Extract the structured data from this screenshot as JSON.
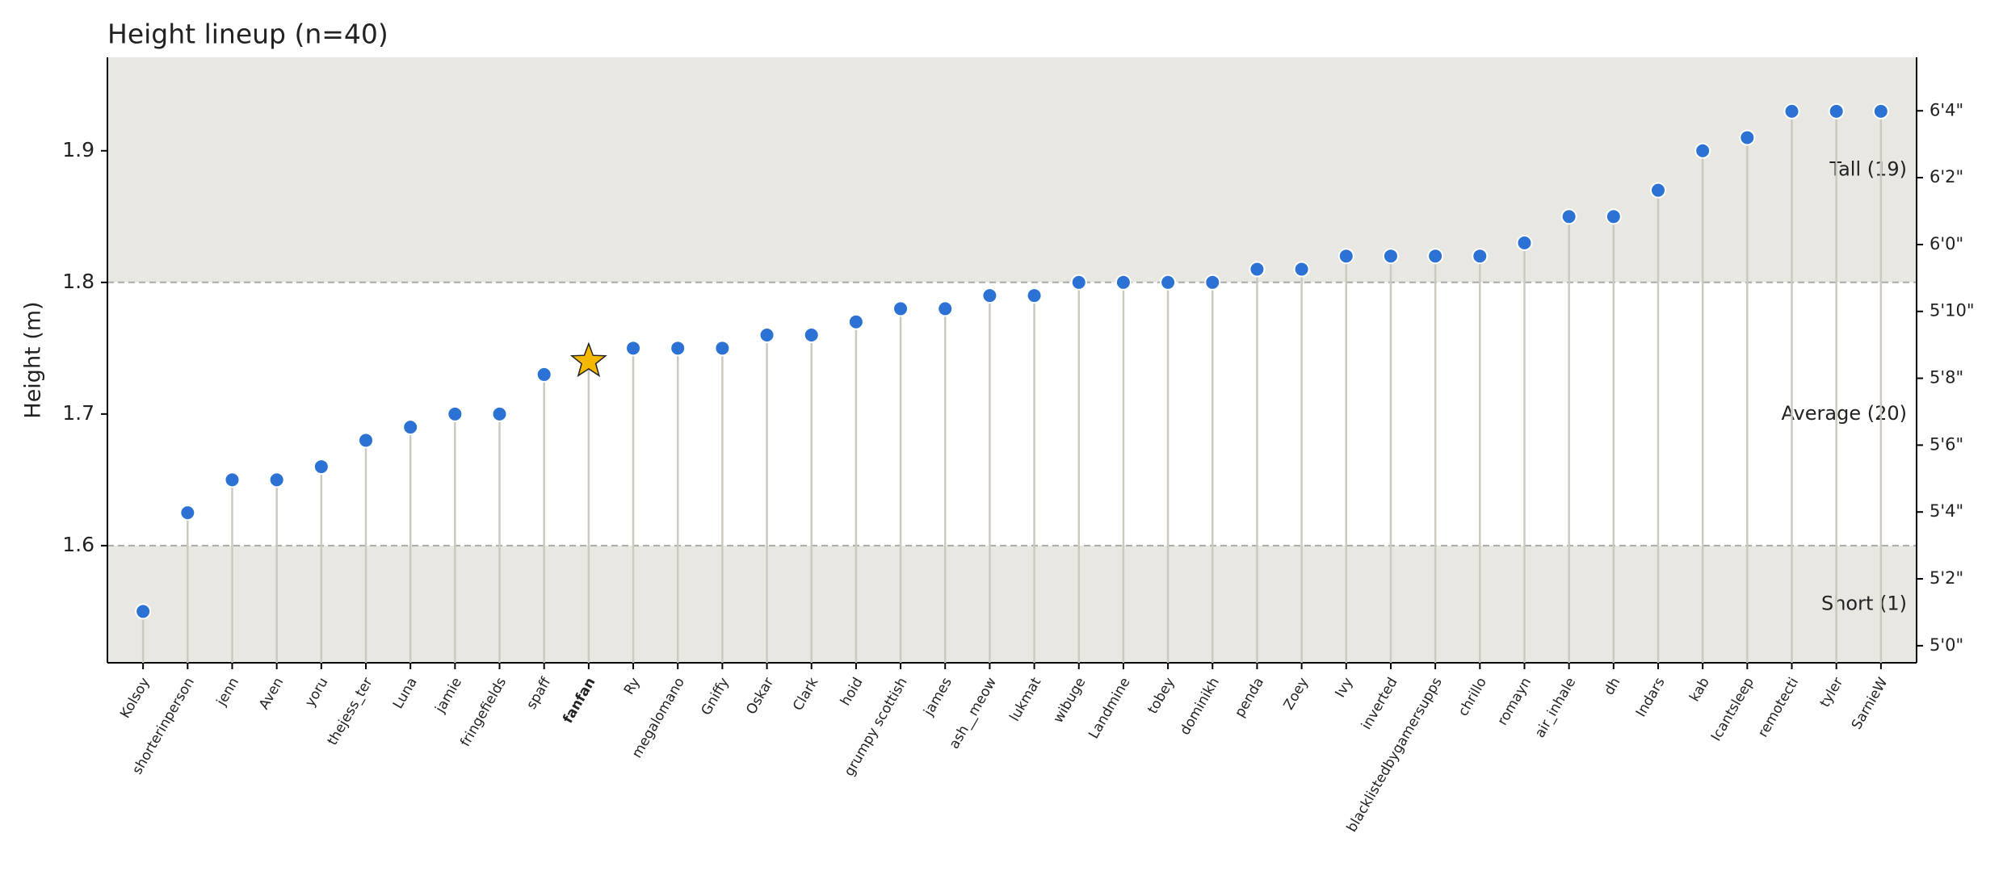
{
  "chart_data": {
    "type": "lollipop",
    "title": "Height lineup (n=40)",
    "y_label": "Height (m)",
    "categories": [
      "Kolsoy",
      "shorterinperson",
      "jenn",
      "Aven",
      "yoru",
      "thejess_ter",
      "Luna",
      "jamie",
      "fringefields",
      "spaff",
      "fanfan",
      "Ry",
      "megalomano",
      "Gniffy",
      "Oskar",
      "Clark",
      "hoid",
      "grumpy scottish",
      "james",
      "ash__meow",
      "lukmat",
      "wibuge",
      "Landmine",
      "tobey",
      "dominikh",
      "penda",
      "Zoey",
      "Ivy",
      "inverted",
      "blacklistedbygamersupps",
      "chrillo",
      "romayn",
      "air_inhale",
      "dh",
      "Indars",
      "kab",
      "Icantsleep",
      "remotecti",
      "tyler",
      "SarnieW"
    ],
    "values": [
      1.55,
      1.625,
      1.65,
      1.65,
      1.66,
      1.68,
      1.69,
      1.7,
      1.7,
      1.73,
      1.74,
      1.75,
      1.75,
      1.75,
      1.76,
      1.76,
      1.77,
      1.78,
      1.78,
      1.79,
      1.79,
      1.8,
      1.8,
      1.8,
      1.8,
      1.81,
      1.81,
      1.82,
      1.82,
      1.82,
      1.82,
      1.83,
      1.85,
      1.85,
      1.87,
      1.9,
      1.91,
      1.93,
      1.93,
      1.93
    ],
    "color": "#2b72d4",
    "highlight": "fanfan",
    "highlight_color": "#f5b800",
    "ylim": [
      1.511,
      1.971
    ],
    "yticks": [
      1.6,
      1.7,
      1.8,
      1.9
    ],
    "y2lim": [
      59.49,
      77.6
    ],
    "y2ticks": [
      {
        "value": 60,
        "label": "5'0\""
      },
      {
        "value": 62,
        "label": "5'2\""
      },
      {
        "value": 64,
        "label": "5'4\""
      },
      {
        "value": 66,
        "label": "5'6\""
      },
      {
        "value": 68,
        "label": "5'8\""
      },
      {
        "value": 70,
        "label": "5'10\""
      },
      {
        "value": 72,
        "label": "6'0\""
      },
      {
        "value": 74,
        "label": "6'2\""
      },
      {
        "value": 76,
        "label": "6'4\""
      }
    ],
    "bands": [
      {
        "label": "Short (1)",
        "from": 1.511,
        "to": 1.6,
        "shaded": true
      },
      {
        "label": "Average (20)",
        "from": 1.6,
        "to": 1.8,
        "shaded": false
      },
      {
        "label": "Tall (19)",
        "from": 1.8,
        "to": 1.971,
        "shaded": true
      }
    ],
    "thresholds": [
      1.6,
      1.8
    ]
  }
}
